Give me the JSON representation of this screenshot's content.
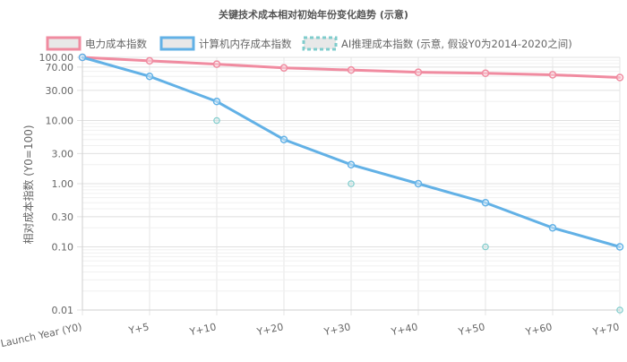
{
  "chart_data": {
    "type": "line",
    "title": "关键技术成本相对初始年份变化趋势 (示意)",
    "ylabel": "相对成本指数 (Y0=100)",
    "xlabel": "",
    "yscale": "log",
    "ylim": [
      0.01,
      100
    ],
    "categories": [
      "Launch Year (Y0)",
      "Y+5",
      "Y+10",
      "Y+20",
      "Y+30",
      "Y+40",
      "Y+50",
      "Y+60",
      "Y+70"
    ],
    "ytick_labels": [
      "0.01",
      "0.10",
      "0.30",
      "1.00",
      "3.00",
      "10.00",
      "30.00",
      "70.00",
      "100.00"
    ],
    "yticks": [
      0.01,
      0.1,
      0.3,
      1,
      3,
      10,
      30,
      70,
      100
    ],
    "grid": true,
    "legend_position": "top",
    "series": [
      {
        "name": "电力成本指数",
        "color": "#f08ba0",
        "style": "line",
        "values": [
          100,
          88,
          78,
          68,
          63,
          58,
          56,
          53,
          48
        ]
      },
      {
        "name": "计算机内存成本指数",
        "color": "#62b1e6",
        "style": "line",
        "values": [
          100,
          50,
          20,
          5,
          2,
          1,
          0.5,
          0.2,
          0.1
        ]
      },
      {
        "name": "AI推理成本指数 (示意, 假设Y0为2014-2020之间)",
        "color": "#7fcccc",
        "style": "scatter",
        "values": [
          null,
          null,
          10,
          null,
          1,
          null,
          0.1,
          null,
          0.01
        ]
      }
    ]
  }
}
